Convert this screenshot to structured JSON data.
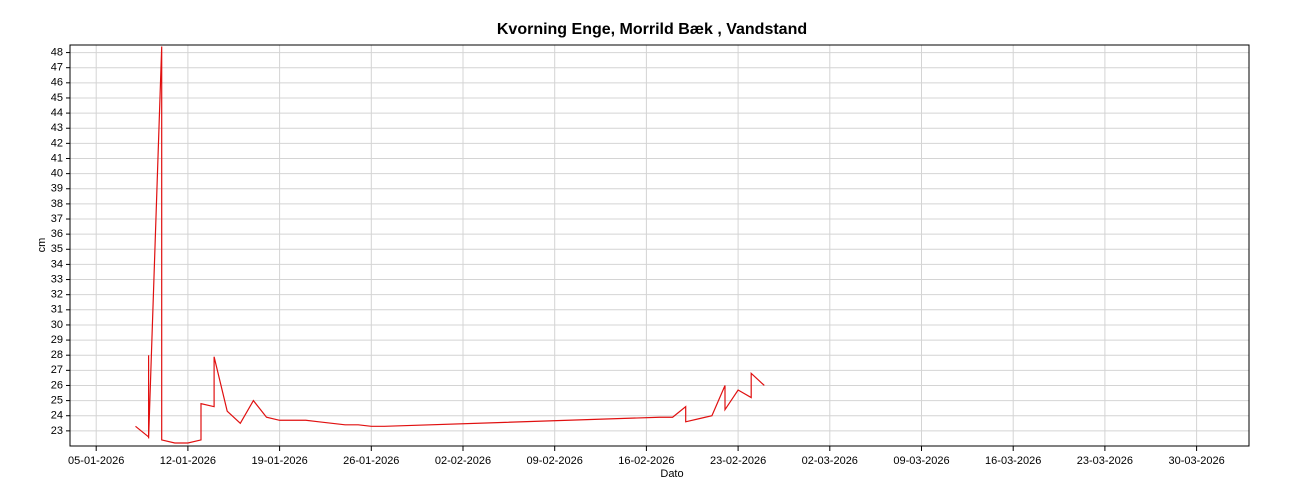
{
  "chart_data": {
    "type": "line",
    "title": "Kvorning Enge, Morrild Bæk , Vandstand",
    "ylabel": "cm",
    "xlabel": "Dato",
    "x": [
      "08-01-2026",
      "09-01-2026",
      "09-01-2026",
      "09-01-2026",
      "10-01-2026",
      "10-01-2026",
      "10-01-2026",
      "10-01-2026",
      "11-01-2026",
      "12-01-2026",
      "13-01-2026",
      "13-01-2026",
      "14-01-2026",
      "14-01-2026",
      "15-01-2026",
      "16-01-2026",
      "17-01-2026",
      "18-01-2026",
      "19-01-2026",
      "20-01-2026",
      "21-01-2026",
      "22-01-2026",
      "23-01-2026",
      "24-01-2026",
      "25-01-2026",
      "26-01-2026",
      "27-01-2026",
      "17-02-2026",
      "18-02-2026",
      "19-02-2026",
      "19-02-2026",
      "20-02-2026",
      "21-02-2026",
      "22-02-2026",
      "22-02-2026",
      "23-02-2026",
      "24-02-2026",
      "24-02-2026",
      "25-02-2026"
    ],
    "series": [
      {
        "name": "Vandstand",
        "color": "#e01010",
        "values": [
          23.3,
          22.6,
          28.0,
          22.5,
          48.4,
          22.6,
          25.8,
          22.4,
          22.2,
          22.2,
          22.4,
          24.8,
          24.6,
          27.9,
          24.3,
          23.5,
          25.0,
          23.9,
          23.7,
          23.7,
          23.7,
          23.6,
          23.5,
          23.4,
          23.4,
          23.3,
          23.3,
          23.9,
          23.9,
          24.6,
          23.6,
          23.8,
          24.0,
          26.0,
          24.4,
          25.7,
          25.2,
          26.8,
          26.0
        ]
      }
    ],
    "xlim": [
      "03-01-2026",
      "03-04-2026"
    ],
    "xticks": [
      "05-01-2026",
      "12-01-2026",
      "19-01-2026",
      "26-01-2026",
      "02-02-2026",
      "09-02-2026",
      "16-02-2026",
      "23-02-2026",
      "02-03-2026",
      "09-03-2026",
      "16-03-2026",
      "23-03-2026",
      "30-03-2026"
    ],
    "ylim": [
      22,
      48.5
    ],
    "yticks": [
      23,
      24,
      25,
      26,
      27,
      28,
      29,
      30,
      31,
      32,
      33,
      34,
      35,
      36,
      37,
      38,
      39,
      40,
      41,
      42,
      43,
      44,
      45,
      46,
      47,
      48
    ],
    "grid": true
  }
}
